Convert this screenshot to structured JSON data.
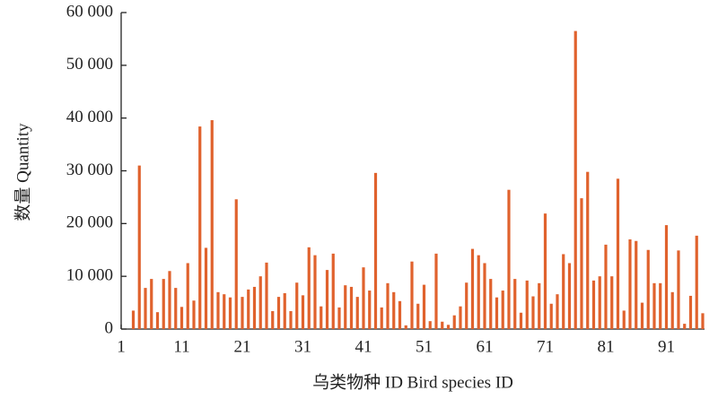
{
  "chart_data": {
    "type": "bar",
    "x_label": "乌类物种 ID Bird species ID",
    "y_label": "数量 Quantity",
    "color": "#e0622d",
    "x": [
      3,
      4,
      5,
      6,
      7,
      8,
      9,
      10,
      11,
      12,
      13,
      14,
      15,
      16,
      17,
      18,
      19,
      20,
      21,
      22,
      23,
      24,
      25,
      26,
      27,
      28,
      29,
      30,
      31,
      32,
      33,
      34,
      35,
      36,
      37,
      38,
      39,
      40,
      41,
      42,
      43,
      44,
      45,
      46,
      47,
      48,
      49,
      50,
      51,
      52,
      53,
      54,
      55,
      56,
      57,
      58,
      59,
      60,
      61,
      62,
      63,
      64,
      65,
      66,
      67,
      68,
      69,
      70,
      71,
      72,
      73,
      74,
      75,
      76,
      77,
      78,
      79,
      80,
      81,
      82,
      83,
      84,
      85,
      86,
      87,
      88,
      89,
      90,
      91,
      92,
      93,
      94,
      95,
      96,
      97
    ],
    "values": [
      3500,
      31000,
      7800,
      9500,
      3200,
      9500,
      11000,
      7800,
      4200,
      12500,
      5400,
      38400,
      15400,
      39600,
      7000,
      6600,
      6000,
      24600,
      6100,
      7500,
      8000,
      10000,
      12600,
      3400,
      6100,
      6800,
      3400,
      8800,
      6400,
      15500,
      14000,
      4300,
      11200,
      14300,
      4100,
      8300,
      8000,
      6100,
      11700,
      7300,
      29600,
      4100,
      8700,
      7000,
      5300,
      700,
      12800,
      4800,
      8400,
      1500,
      14300,
      1400,
      800,
      2600,
      4300,
      8800,
      15200,
      14000,
      12500,
      9500,
      6000,
      7300,
      26400,
      9500,
      3100,
      9200,
      6200,
      8700,
      21900,
      4800,
      6600,
      14200,
      12500,
      56500,
      24800,
      29800,
      9200,
      10000,
      16000,
      10000,
      28500,
      3500,
      17000,
      16700,
      5000,
      15000,
      8700,
      8700,
      19700,
      7000,
      14900,
      1000,
      6300,
      17700,
      3000
    ],
    "xlim": [
      1,
      97.3
    ],
    "xticks": [
      1,
      11,
      21,
      31,
      41,
      51,
      61,
      71,
      81,
      91
    ],
    "ylim": [
      0,
      60000
    ],
    "yticks": [
      0,
      {
        "value": 10000,
        "label": "10 000"
      },
      {
        "value": 20000,
        "label": "20 000"
      },
      {
        "value": 30000,
        "label": "30 000"
      },
      {
        "value": 40000,
        "label": "40 000"
      },
      {
        "value": 50000,
        "label": "50 000"
      },
      {
        "value": 60000,
        "label": "60 000"
      }
    ]
  }
}
